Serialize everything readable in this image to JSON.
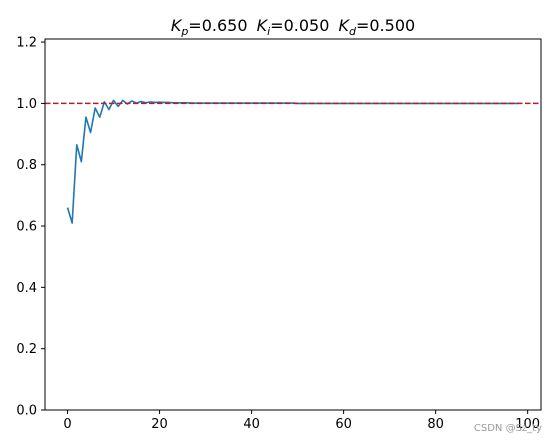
{
  "chart_data": {
    "type": "line",
    "title": {
      "kp_symbol": "K",
      "kp_sub": "p",
      "kp_value": "=0.650",
      "ki_symbol": "K",
      "ki_sub": "i",
      "ki_value": "=0.050",
      "kd_symbol": "K",
      "kd_sub": "d",
      "kd_value": "=0.500"
    },
    "xlabel": "",
    "ylabel": "",
    "xlim": [
      -4.9,
      102.9
    ],
    "ylim": [
      0.0,
      1.21
    ],
    "xticks": [
      0,
      20,
      40,
      60,
      80,
      100
    ],
    "yticks": [
      0.0,
      0.2,
      0.4,
      0.6,
      0.8,
      1.0,
      1.2
    ],
    "xtick_labels": [
      "0",
      "20",
      "40",
      "60",
      "80",
      "100"
    ],
    "ytick_labels": [
      "0.0",
      "0.2",
      "0.4",
      "0.6",
      "0.8",
      "1.0",
      "1.2"
    ],
    "grid": false,
    "series": [
      {
        "color": "#1f77b4",
        "style": "solid",
        "x": [
          0,
          1,
          2,
          3,
          4,
          5,
          6,
          7,
          8,
          9,
          10,
          11,
          12,
          13,
          14,
          15,
          16,
          17,
          18,
          19,
          20,
          21,
          22,
          23,
          24,
          25,
          26,
          27,
          28,
          29,
          30,
          31,
          32,
          33,
          34,
          35,
          36,
          37,
          38,
          39,
          40,
          41,
          42,
          43,
          44,
          45,
          46,
          47,
          48,
          49,
          50,
          51,
          52,
          53,
          54,
          55,
          56,
          57,
          58,
          59,
          60,
          61,
          62,
          63,
          64,
          65,
          66,
          67,
          68,
          69,
          70,
          71,
          72,
          73,
          74,
          75,
          76,
          77,
          78,
          79,
          80,
          81,
          82,
          83,
          84,
          85,
          86,
          87,
          88,
          89,
          90,
          91,
          92,
          93,
          94,
          95,
          96,
          97,
          98
        ],
        "y": [
          0.66,
          0.61,
          0.865,
          0.81,
          0.955,
          0.905,
          0.985,
          0.955,
          1.005,
          0.98,
          1.01,
          0.99,
          1.01,
          0.998,
          1.008,
          1.001,
          1.006,
          1.002,
          1.005,
          1.003,
          1.004,
          1.003,
          1.003,
          1.002,
          1.002,
          1.002,
          1.002,
          1.001,
          1.001,
          1.001,
          1.001,
          1.001,
          1.001,
          1.001,
          1.001,
          1.001,
          1.001,
          1.001,
          1.001,
          1.001,
          1.001,
          1.001,
          1.001,
          1.001,
          1.001,
          1.001,
          1.001,
          1.001,
          1.001,
          1.001,
          1.0,
          1.0,
          1.0,
          1.0,
          1.0,
          1.0,
          1.0,
          1.0,
          1.0,
          1.0,
          1.0,
          1.0,
          1.0,
          1.0,
          1.0,
          1.0,
          1.0,
          1.0,
          1.0,
          1.0,
          1.0,
          1.0,
          1.0,
          1.0,
          1.0,
          1.0,
          1.0,
          1.0,
          1.0,
          1.0,
          1.0,
          1.0,
          1.0,
          1.0,
          1.0,
          1.0,
          1.0,
          1.0,
          1.0,
          1.0,
          1.0,
          1.0,
          1.0,
          1.0,
          1.0,
          1.0,
          1.0,
          1.0,
          1.0
        ]
      }
    ],
    "reference_line": {
      "y": 1.0,
      "color": "#b22222",
      "style": "dashed"
    }
  },
  "watermark": "CSDN @Sz_ty"
}
